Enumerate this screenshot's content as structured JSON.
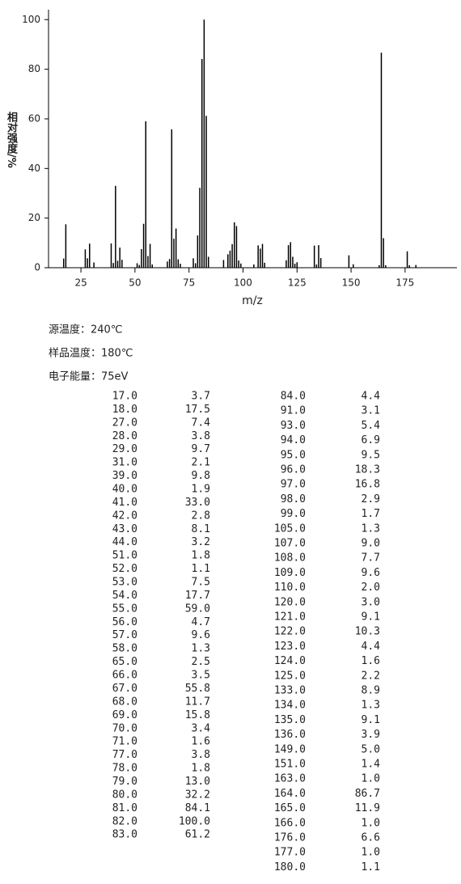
{
  "chart_data": {
    "type": "bar",
    "x_label": "m/z",
    "y_label": "相对强度/%",
    "x": [
      17,
      18,
      27,
      28,
      29,
      31,
      39,
      40,
      41,
      42,
      43,
      44,
      51,
      52,
      53,
      54,
      55,
      56,
      57,
      58,
      65,
      66,
      67,
      68,
      69,
      70,
      71,
      77,
      78,
      79,
      80,
      81,
      82,
      83,
      84,
      91,
      93,
      94,
      95,
      96,
      97,
      98,
      99,
      105,
      107,
      108,
      109,
      110,
      120,
      121,
      122,
      123,
      124,
      125,
      133,
      134,
      135,
      136,
      149,
      151,
      163,
      164,
      165,
      166,
      176,
      177,
      180
    ],
    "values": [
      3.7,
      17.5,
      7.4,
      3.8,
      9.7,
      2.1,
      9.8,
      1.9,
      33.0,
      2.8,
      8.1,
      3.2,
      1.8,
      1.1,
      7.5,
      17.7,
      59.0,
      4.7,
      9.6,
      1.3,
      2.5,
      3.5,
      55.8,
      11.7,
      15.8,
      3.4,
      1.6,
      3.8,
      1.8,
      13.0,
      32.2,
      84.1,
      100.0,
      61.2,
      4.4,
      3.1,
      5.4,
      6.9,
      9.5,
      18.3,
      16.8,
      2.9,
      1.7,
      1.3,
      9.0,
      7.7,
      9.6,
      2.0,
      3.0,
      9.1,
      10.3,
      4.4,
      1.6,
      2.2,
      8.9,
      1.3,
      9.1,
      3.9,
      5.0,
      1.4,
      1.0,
      86.7,
      11.9,
      1.0,
      6.6,
      1.0,
      1.1
    ],
    "color": "#000000",
    "xlim": [
      10,
      199
    ],
    "ylim": [
      0,
      104
    ],
    "xticks": [
      25,
      50,
      75,
      100,
      125,
      150,
      175
    ],
    "yticks": [
      0,
      20,
      40,
      60,
      80,
      100
    ]
  },
  "info": [
    "源温度：240℃",
    "样品温度：180℃",
    "电子能量：75eV"
  ],
  "table": {
    "left": [
      [
        "17.0",
        "3.7"
      ],
      [
        "18.0",
        "17.5"
      ],
      [
        "27.0",
        "7.4"
      ],
      [
        "28.0",
        "3.8"
      ],
      [
        "29.0",
        "9.7"
      ],
      [
        "31.0",
        "2.1"
      ],
      [
        "39.0",
        "9.8"
      ],
      [
        "40.0",
        "1.9"
      ],
      [
        "41.0",
        "33.0"
      ],
      [
        "42.0",
        "2.8"
      ],
      [
        "43.0",
        "8.1"
      ],
      [
        "44.0",
        "3.2"
      ],
      [
        "51.0",
        "1.8"
      ],
      [
        "52.0",
        "1.1"
      ],
      [
        "53.0",
        "7.5"
      ],
      [
        "54.0",
        "17.7"
      ],
      [
        "55.0",
        "59.0"
      ],
      [
        "56.0",
        "4.7"
      ],
      [
        "57.0",
        "9.6"
      ],
      [
        "58.0",
        "1.3"
      ],
      [
        "65.0",
        "2.5"
      ],
      [
        "66.0",
        "3.5"
      ],
      [
        "67.0",
        "55.8"
      ],
      [
        "68.0",
        "11.7"
      ],
      [
        "69.0",
        "15.8"
      ],
      [
        "70.0",
        "3.4"
      ],
      [
        "71.0",
        "1.6"
      ],
      [
        "77.0",
        "3.8"
      ],
      [
        "78.0",
        "1.8"
      ],
      [
        "79.0",
        "13.0"
      ],
      [
        "80.0",
        "32.2"
      ],
      [
        "81.0",
        "84.1"
      ],
      [
        "82.0",
        "100.0"
      ],
      [
        "83.0",
        "61.2"
      ]
    ],
    "right": [
      [
        "84.0",
        "4.4"
      ],
      [
        "91.0",
        "3.1"
      ],
      [
        "93.0",
        "5.4"
      ],
      [
        "94.0",
        "6.9"
      ],
      [
        "95.0",
        "9.5"
      ],
      [
        "96.0",
        "18.3"
      ],
      [
        "97.0",
        "16.8"
      ],
      [
        "98.0",
        "2.9"
      ],
      [
        "99.0",
        "1.7"
      ],
      [
        "105.0",
        "1.3"
      ],
      [
        "107.0",
        "9.0"
      ],
      [
        "108.0",
        "7.7"
      ],
      [
        "109.0",
        "9.6"
      ],
      [
        "110.0",
        "2.0"
      ],
      [
        "120.0",
        "3.0"
      ],
      [
        "121.0",
        "9.1"
      ],
      [
        "122.0",
        "10.3"
      ],
      [
        "123.0",
        "4.4"
      ],
      [
        "124.0",
        "1.6"
      ],
      [
        "125.0",
        "2.2"
      ],
      [
        "133.0",
        "8.9"
      ],
      [
        "134.0",
        "1.3"
      ],
      [
        "135.0",
        "9.1"
      ],
      [
        "136.0",
        "3.9"
      ],
      [
        "149.0",
        "5.0"
      ],
      [
        "151.0",
        "1.4"
      ],
      [
        "163.0",
        "1.0"
      ],
      [
        "164.0",
        "86.7"
      ],
      [
        "165.0",
        "11.9"
      ],
      [
        "166.0",
        "1.0"
      ],
      [
        "176.0",
        "6.6"
      ],
      [
        "177.0",
        "1.0"
      ],
      [
        "180.0",
        "1.1"
      ]
    ]
  }
}
